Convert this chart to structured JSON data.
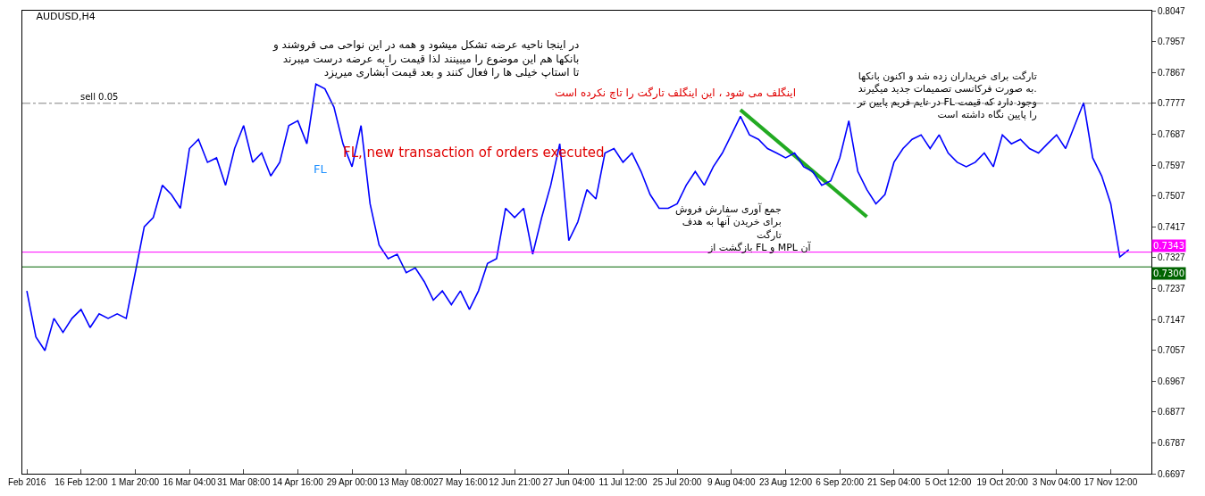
{
  "chart_data": {
    "type": "line",
    "title": "AUDUSD,H4",
    "categories": [
      "Feb 2016",
      null,
      null,
      null,
      null,
      null,
      "16 Feb 12:00",
      null,
      null,
      null,
      null,
      null,
      "1 Mar 20:00",
      null,
      null,
      null,
      null,
      null,
      "16 Mar 04:00",
      null,
      null,
      null,
      null,
      null,
      "31 Mar 08:00",
      null,
      null,
      null,
      null,
      null,
      "14 Apr 16:00",
      null,
      null,
      null,
      null,
      null,
      "29 Apr 00:00",
      null,
      null,
      null,
      null,
      null,
      "13 May 08:00",
      null,
      null,
      null,
      null,
      null,
      "27 May 16:00",
      null,
      null,
      null,
      null,
      null,
      "12 Jun 21:00",
      null,
      null,
      null,
      null,
      null,
      "27 Jun 04:00",
      null,
      null,
      null,
      null,
      null,
      "11 Jul 12:00",
      null,
      null,
      null,
      null,
      null,
      "25 Jul 20:00",
      null,
      null,
      null,
      null,
      null,
      "9 Aug 04:00",
      null,
      null,
      null,
      null,
      null,
      "23 Aug 12:00",
      null,
      null,
      null,
      null,
      null,
      "6 Sep 20:00",
      null,
      null,
      null,
      null,
      null,
      "21 Sep 04:00",
      null,
      null,
      null,
      null,
      null,
      "5 Oct 12:00",
      null,
      null,
      null,
      null,
      null,
      "19 Oct 20:00",
      null,
      null,
      null,
      null,
      null,
      "3 Nov 04:00",
      null,
      null,
      null,
      null,
      null,
      "17 Nov 12:00",
      null,
      null
    ],
    "series": [
      {
        "color": "#0000ff",
        "values": [
          0.723,
          0.7096,
          0.7056,
          0.715,
          0.7109,
          0.715,
          0.7176,
          0.7123,
          0.7163,
          0.715,
          0.7163,
          0.715,
          0.7283,
          0.7417,
          0.7444,
          0.7538,
          0.7511,
          0.7471,
          0.7645,
          0.7672,
          0.7605,
          0.7618,
          0.7538,
          0.7645,
          0.7712,
          0.7605,
          0.7632,
          0.7565,
          0.7605,
          0.7712,
          0.7726,
          0.7659,
          0.7833,
          0.7819,
          0.7766,
          0.7659,
          0.7592,
          0.7712,
          0.7484,
          0.7364,
          0.7324,
          0.7337,
          0.7283,
          0.7297,
          0.7257,
          0.7203,
          0.723,
          0.719,
          0.723,
          0.7176,
          0.723,
          0.731,
          0.7324,
          0.7471,
          0.7444,
          0.7471,
          0.7337,
          0.7444,
          0.7538,
          0.7659,
          0.7377,
          0.7431,
          0.7525,
          0.7498,
          0.7632,
          0.7645,
          0.7605,
          0.7632,
          0.7578,
          0.7511,
          0.7471,
          0.7471,
          0.7484,
          0.7538,
          0.7578,
          0.7538,
          0.7592,
          0.7632,
          0.7685,
          0.7739,
          0.7685,
          0.7672,
          0.7645,
          0.7632,
          0.7618,
          0.7632,
          0.7592,
          0.7578,
          0.7538,
          0.7551,
          0.7618,
          0.7726,
          0.7578,
          0.7525,
          0.7484,
          0.7511,
          0.7605,
          0.7645,
          0.7672,
          0.7685,
          0.7645,
          0.7685,
          0.7632,
          0.7605,
          0.7592,
          0.7605,
          0.7632,
          0.7592,
          0.7685,
          0.7659,
          0.7672,
          0.7645,
          0.7632,
          0.7659,
          0.7685,
          0.7645,
          0.7712,
          0.7779,
          0.7618,
          0.7565,
          0.7484,
          0.7329,
          0.735
        ]
      },
      {
        "color": "#22aa22",
        "values": [
          null,
          null,
          null,
          null,
          null,
          null,
          null,
          null,
          null,
          null,
          null,
          null,
          null,
          null,
          null,
          null,
          null,
          null,
          null,
          null,
          null,
          null,
          null,
          null,
          null,
          null,
          null,
          null,
          null,
          null,
          null,
          null,
          null,
          null,
          null,
          null,
          null,
          null,
          null,
          null,
          null,
          null,
          null,
          null,
          null,
          null,
          null,
          null,
          null,
          null,
          null,
          null,
          null,
          null,
          null,
          null,
          null,
          null,
          null,
          null,
          null,
          null,
          null,
          null,
          null,
          null,
          null,
          null,
          null,
          null,
          null,
          null,
          null,
          null,
          null,
          null,
          null,
          null,
          null,
          0.7758,
          null,
          null,
          null,
          null,
          null,
          null,
          null,
          null,
          null,
          null,
          null,
          null,
          null,
          0.7446,
          null,
          null,
          null,
          null,
          null,
          null,
          null,
          null,
          null,
          null,
          null,
          null,
          null,
          null,
          null,
          null,
          null,
          null,
          null,
          null,
          null,
          null,
          null,
          null,
          null,
          null,
          null,
          null,
          null
        ]
      }
    ],
    "ylim": [
      0.6697,
      0.8047
    ],
    "yticks": [
      0.6697,
      0.6787,
      0.6877,
      0.6967,
      0.7057,
      0.7147,
      0.7237,
      0.7327,
      0.7417,
      0.7507,
      0.7597,
      0.7687,
      0.7777,
      0.7867,
      0.7957,
      0.8047
    ],
    "ref_lines": [
      {
        "axis": "y",
        "value": 0.7777,
        "label": "sell 0.05",
        "color": "#808080",
        "line_style": "dashed"
      },
      {
        "axis": "y",
        "value": 0.7343,
        "label": "0.7343",
        "color": "#ff00ff"
      },
      {
        "axis": "y",
        "value": 0.73,
        "label": "0.7300",
        "color": "#006400"
      }
    ],
    "annotations": [
      "در اینجا ناحیه عرضه تشکل میشود و همه در این نواحی می فروشند و\nبانکها هم این موضوع را میبینند لذا قیمت را به عرضه درست میبرند\nتا استاپ خیلی ها را فعال کنند و بعد قیمت آبشاری میریزد",
      "اینگلف می شود ، این اینگلف تارگت را تاچ نکرده است",
      "FL, new transaction of orders executed",
      "FL",
      "تارگت برای خریداران زده شد و اکنون بانکها\nبه صورت فرکانسی تصمیمات جدید میگیرند.\nدر تایم فریم پایین تر FL وجود دارد که قیمت\nرا پایین نگاه داشته است",
      "جمع آوری سفارش فروش\nبرای خریدن آنها به هدف\nتارگت",
      "بازگشت از FL و MPL آن"
    ]
  }
}
